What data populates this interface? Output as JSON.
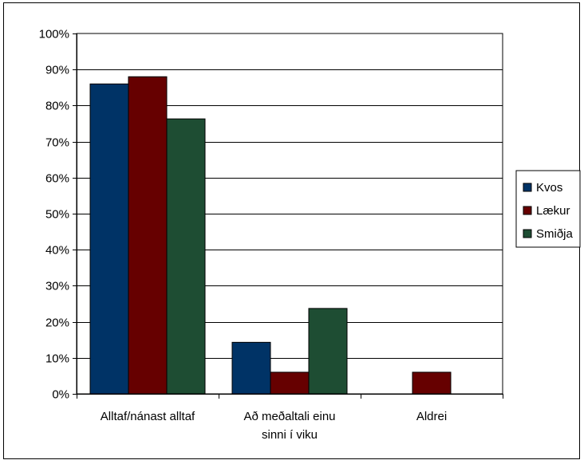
{
  "chart_data": {
    "type": "bar",
    "categories": [
      [
        "Alltaf/nánast alltaf"
      ],
      [
        "Að meðaltali einu",
        "sinni í viku"
      ],
      [
        "Aldrei"
      ]
    ],
    "series": [
      {
        "name": "Kvos",
        "color": "#003366",
        "values": [
          86,
          14.3,
          0
        ]
      },
      {
        "name": "Lækur",
        "color": "#660000",
        "values": [
          88,
          6,
          6
        ]
      },
      {
        "name": "Smiðja",
        "color": "#1e4d33",
        "values": [
          76.3,
          23.7,
          0
        ]
      }
    ],
    "yticks": [
      "0%",
      "10%",
      "20%",
      "30%",
      "40%",
      "50%",
      "60%",
      "70%",
      "80%",
      "90%",
      "100%"
    ],
    "ylim": [
      0,
      100
    ],
    "grid": true,
    "legend": "right"
  }
}
